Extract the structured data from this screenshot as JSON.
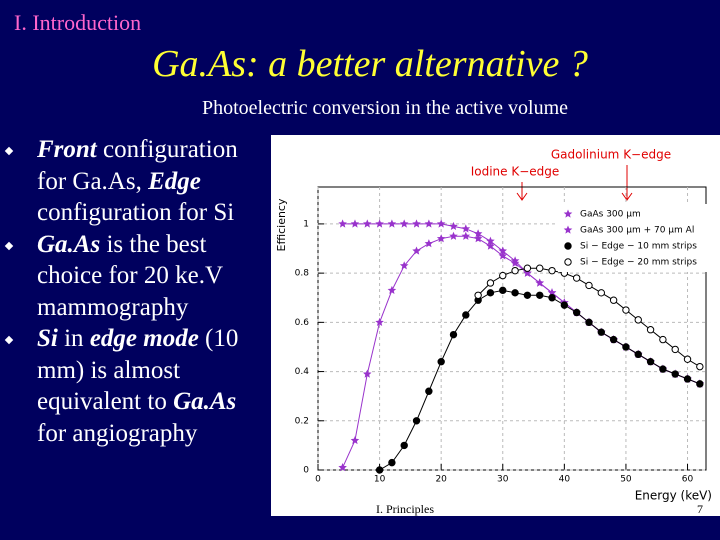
{
  "header": {
    "section": "I. Introduction",
    "title": "Ga.As: a better alternative ?",
    "subtitle": "Photoelectric conversion in the active volume"
  },
  "bullets": [
    [
      "Front",
      " configuration for Ga.As, ",
      "Edge",
      " configuration for Si"
    ],
    [
      "Ga.As",
      " is the best choice for 20 ke.V mammography"
    ],
    [
      "Si",
      " in ",
      "edge mode",
      " (10 mm) is almost equivalent to ",
      "Ga.As",
      " for angiography"
    ]
  ],
  "footer": {
    "left": "I. Principles",
    "page": "7"
  },
  "chart_data": {
    "type": "line",
    "xlabel": "Energy (keV)",
    "ylabel": "Efficiency",
    "annotations": [
      "Iodine K−edge",
      "Gadolinium K−edge"
    ],
    "x": [
      4,
      6,
      8,
      10,
      12,
      14,
      16,
      18,
      20,
      22,
      24,
      26,
      28,
      30,
      32,
      34,
      36,
      38,
      40,
      42,
      44,
      46,
      48,
      50,
      52,
      54,
      56,
      58,
      60,
      62
    ],
    "series": [
      {
        "name": "GaAs 300 µm",
        "color": "#9933cc",
        "marker": "star",
        "values": [
          1,
          1,
          1,
          1,
          1,
          1,
          1,
          1,
          1,
          0.99,
          0.98,
          0.96,
          0.93,
          0.89,
          0.85,
          0.8,
          0.76,
          0.72,
          0.68,
          0.64,
          0.6,
          0.56,
          0.53,
          0.5,
          0.47,
          0.44,
          0.41,
          0.39,
          0.37,
          0.35
        ]
      },
      {
        "name": "GaAs 300 µm + 70 µm Al",
        "color": "#9933cc",
        "marker": "star",
        "values": [
          0.01,
          0.12,
          0.39,
          0.6,
          0.73,
          0.83,
          0.89,
          0.92,
          0.94,
          0.95,
          0.95,
          0.94,
          0.91,
          0.87,
          0.84,
          0.8,
          0.76,
          0.72,
          0.68,
          0.64,
          0.6,
          0.56,
          0.53,
          0.5,
          0.47,
          0.44,
          0.41,
          0.39,
          0.37,
          0.35
        ]
      },
      {
        "name": "Si − Edge − 10 mm strips",
        "color": "#000000",
        "marker": "circle",
        "values": [
          null,
          null,
          null,
          0,
          0.03,
          0.1,
          0.2,
          0.32,
          0.44,
          0.55,
          0.63,
          0.69,
          0.72,
          0.73,
          0.72,
          0.71,
          0.71,
          0.7,
          0.67,
          0.64,
          0.6,
          0.56,
          0.53,
          0.5,
          0.47,
          0.44,
          0.41,
          0.39,
          0.37,
          0.35
        ]
      },
      {
        "name": "Si − Edge − 20 mm strips",
        "color": "#000000",
        "marker": "open-circle",
        "values": [
          null,
          null,
          null,
          null,
          null,
          null,
          null,
          null,
          null,
          null,
          null,
          0.71,
          0.76,
          0.79,
          0.81,
          0.82,
          0.82,
          0.81,
          0.8,
          0.78,
          0.75,
          0.72,
          0.69,
          0.65,
          0.61,
          0.57,
          0.53,
          0.49,
          0.45,
          0.42
        ]
      }
    ],
    "xlim": [
      0,
      63
    ],
    "ylim": [
      0,
      1.15
    ],
    "xticks": [
      0,
      10,
      20,
      30,
      40,
      50,
      60
    ],
    "yticks": [
      0,
      0.2,
      0.4,
      0.6,
      0.8,
      1
    ],
    "grid": true,
    "legend": "top-right"
  }
}
